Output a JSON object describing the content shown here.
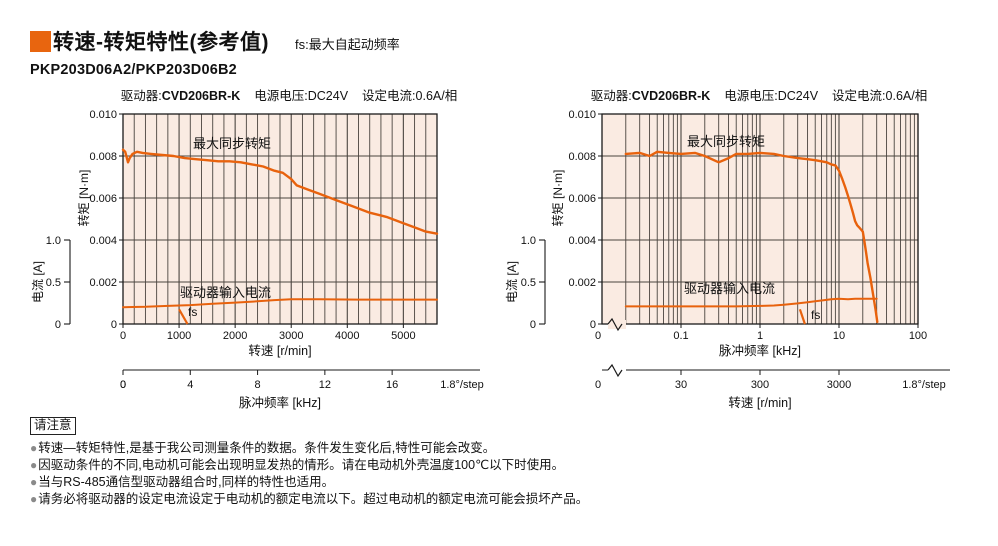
{
  "header": {
    "title": "转速-转矩特性(参考值)",
    "fs_note": "fs:最大自起动频率",
    "model": "PKP203D06A2/PKP203D06B2"
  },
  "colors": {
    "accent": "#E8650F",
    "curve": "#E8620D",
    "plot_bg": "#FAEBE2",
    "grid": "#4A443F",
    "axis": "#1A1A1A",
    "text": "#111111"
  },
  "notes": {
    "title": "请注意",
    "items": [
      "转速—转矩特性,是基于我公司测量条件的数据。条件发生变化后,特性可能会改变。",
      "因驱动条件的不同,电动机可能会出现明显发热的情形。请在电动机外壳温度100℃以下时使用。",
      "当与RS-485通信型驱动器组合时,同样的特性也适用。",
      "请务必将驱动器的设定电流设定于电动机的额定电流以下。超过电动机的额定电流可能会损坏产品。"
    ]
  },
  "chart_data": [
    {
      "type": "line",
      "conditions": {
        "driver_label": "驱动器:",
        "driver_value": "CVD206BR-K",
        "voltage": "电源电压:DC24V",
        "current_setting": "设定电流:0.6A/相"
      },
      "x_axis": {
        "label": "转速 [r/min]",
        "scale": "linear",
        "min": 0,
        "max": 5600,
        "ticks": [
          0,
          1000,
          2000,
          3000,
          4000,
          5000
        ],
        "minor_step": 200
      },
      "x2_axis": {
        "label": "脉冲频率 [kHz]",
        "ticks": [
          0,
          4,
          8,
          12,
          16
        ],
        "suffix": "1.8°/step",
        "rpm_per_khz": 300
      },
      "y_axis": {
        "label": "转矩 [N·m]",
        "min": 0,
        "max": 0.01,
        "tick_step": 0.002,
        "tick_labels": [
          "0",
          "0.002",
          "0.004",
          "0.006",
          "0.008",
          "0.010"
        ]
      },
      "y2_axis": {
        "label": "电流 [A]",
        "tick_labels": [
          "0",
          "0.5",
          "1.0"
        ],
        "amps_full": 1.0,
        "torque_equiv": 0.004
      },
      "series": [
        {
          "name": "最大同步转矩",
          "unit": "N·m",
          "points": [
            [
              0,
              0.0083
            ],
            [
              40,
              0.0082
            ],
            [
              70,
              0.0079
            ],
            [
              90,
              0.0077
            ],
            [
              120,
              0.0079
            ],
            [
              170,
              0.0081
            ],
            [
              250,
              0.0082
            ],
            [
              350,
              0.00815
            ],
            [
              500,
              0.0081
            ],
            [
              700,
              0.00805
            ],
            [
              900,
              0.008
            ],
            [
              1100,
              0.0079
            ],
            [
              1300,
              0.00785
            ],
            [
              1500,
              0.0078
            ],
            [
              1700,
              0.00775
            ],
            [
              1900,
              0.00775
            ],
            [
              2100,
              0.0077
            ],
            [
              2300,
              0.0076
            ],
            [
              2500,
              0.0075
            ],
            [
              2700,
              0.0073
            ],
            [
              2850,
              0.0072
            ],
            [
              3000,
              0.0069
            ],
            [
              3100,
              0.0066
            ],
            [
              3300,
              0.0064
            ],
            [
              3500,
              0.0062
            ],
            [
              3800,
              0.0059
            ],
            [
              4100,
              0.0056
            ],
            [
              4400,
              0.0053
            ],
            [
              4700,
              0.0051
            ],
            [
              5000,
              0.0048
            ],
            [
              5200,
              0.0046
            ],
            [
              5400,
              0.0044
            ],
            [
              5600,
              0.0043
            ]
          ]
        },
        {
          "name": "驱动器输入电流",
          "unit": "A",
          "points": [
            [
              0,
              0.2
            ],
            [
              400,
              0.205
            ],
            [
              800,
              0.215
            ],
            [
              1200,
              0.225
            ],
            [
              1600,
              0.24
            ],
            [
              2000,
              0.255
            ],
            [
              2400,
              0.27
            ],
            [
              2700,
              0.285
            ],
            [
              3000,
              0.295
            ],
            [
              3500,
              0.295
            ],
            [
              4200,
              0.29
            ],
            [
              5000,
              0.29
            ],
            [
              5600,
              0.29
            ]
          ]
        }
      ],
      "fs_marker": {
        "label": "fs",
        "x": [
          1000,
          1150
        ],
        "y": [
          0.0007,
          0
        ]
      }
    },
    {
      "type": "line",
      "conditions": {
        "driver_label": "驱动器:",
        "driver_value": "CVD206BR-K",
        "voltage": "电源电压:DC24V",
        "current_setting": "设定电流:0.6A/相"
      },
      "x_axis": {
        "label": "脉冲频率 [kHz]",
        "scale": "log",
        "min": 0.02,
        "max": 100,
        "ticks": [
          0.1,
          1,
          10,
          100
        ],
        "zero_label": "0"
      },
      "x2_axis": {
        "label": "转速 [r/min]",
        "ticks": [
          30,
          300,
          3000
        ],
        "suffix": "1.8°/step",
        "zero_label": "0",
        "rpm_per_khz": 300
      },
      "y_axis": {
        "label": "转矩 [N·m]",
        "min": 0,
        "max": 0.01,
        "tick_step": 0.002,
        "tick_labels": [
          "0",
          "0.002",
          "0.004",
          "0.006",
          "0.008",
          "0.010"
        ]
      },
      "y2_axis": {
        "label": "电流 [A]",
        "tick_labels": [
          "0",
          "0.5",
          "1.0"
        ],
        "amps_full": 1.0,
        "torque_equiv": 0.004
      },
      "series": [
        {
          "name": "最大同步转矩",
          "unit": "N·m",
          "points": [
            [
              0.02,
              0.0081
            ],
            [
              0.03,
              0.00815
            ],
            [
              0.04,
              0.008
            ],
            [
              0.05,
              0.0082
            ],
            [
              0.07,
              0.00815
            ],
            [
              0.1,
              0.0081
            ],
            [
              0.15,
              0.00815
            ],
            [
              0.2,
              0.008
            ],
            [
              0.3,
              0.0077
            ],
            [
              0.4,
              0.0079
            ],
            [
              0.5,
              0.0081
            ],
            [
              0.7,
              0.0081
            ],
            [
              1,
              0.00815
            ],
            [
              1.5,
              0.0081
            ],
            [
              2,
              0.008
            ],
            [
              3,
              0.0079
            ],
            [
              4,
              0.00785
            ],
            [
              5,
              0.0078
            ],
            [
              6,
              0.00775
            ],
            [
              7,
              0.0077
            ],
            [
              8,
              0.0076
            ],
            [
              9,
              0.00755
            ],
            [
              10,
              0.0073
            ],
            [
              11,
              0.0069
            ],
            [
              12,
              0.0065
            ],
            [
              13,
              0.0061
            ],
            [
              14,
              0.0057
            ],
            [
              15,
              0.0053
            ],
            [
              16,
              0.0049
            ],
            [
              17,
              0.0047
            ],
            [
              18,
              0.0046
            ],
            [
              19,
              0.0045
            ],
            [
              20,
              0.0044
            ],
            [
              21,
              0.0039
            ],
            [
              22,
              0.0034
            ],
            [
              23,
              0.0029
            ],
            [
              25,
              0.0022
            ],
            [
              27,
              0.0014
            ],
            [
              29,
              0.0007
            ],
            [
              30.5,
              0.0001
            ]
          ]
        },
        {
          "name": "驱动器输入电流",
          "unit": "A",
          "points": [
            [
              0.02,
              0.21
            ],
            [
              0.05,
              0.21
            ],
            [
              0.1,
              0.21
            ],
            [
              0.2,
              0.21
            ],
            [
              0.5,
              0.21
            ],
            [
              1,
              0.215
            ],
            [
              1.5,
              0.22
            ],
            [
              2,
              0.23
            ],
            [
              3,
              0.245
            ],
            [
              4,
              0.26
            ],
            [
              5,
              0.27
            ],
            [
              6,
              0.28
            ],
            [
              8,
              0.295
            ],
            [
              10,
              0.3
            ],
            [
              13,
              0.295
            ],
            [
              16,
              0.3
            ],
            [
              20,
              0.3
            ],
            [
              25,
              0.3
            ],
            [
              30,
              0.3
            ]
          ]
        }
      ],
      "fs_marker": {
        "label": "fs",
        "x": [
          3.2,
          3.7
        ],
        "y": [
          0.0007,
          0
        ]
      }
    }
  ]
}
